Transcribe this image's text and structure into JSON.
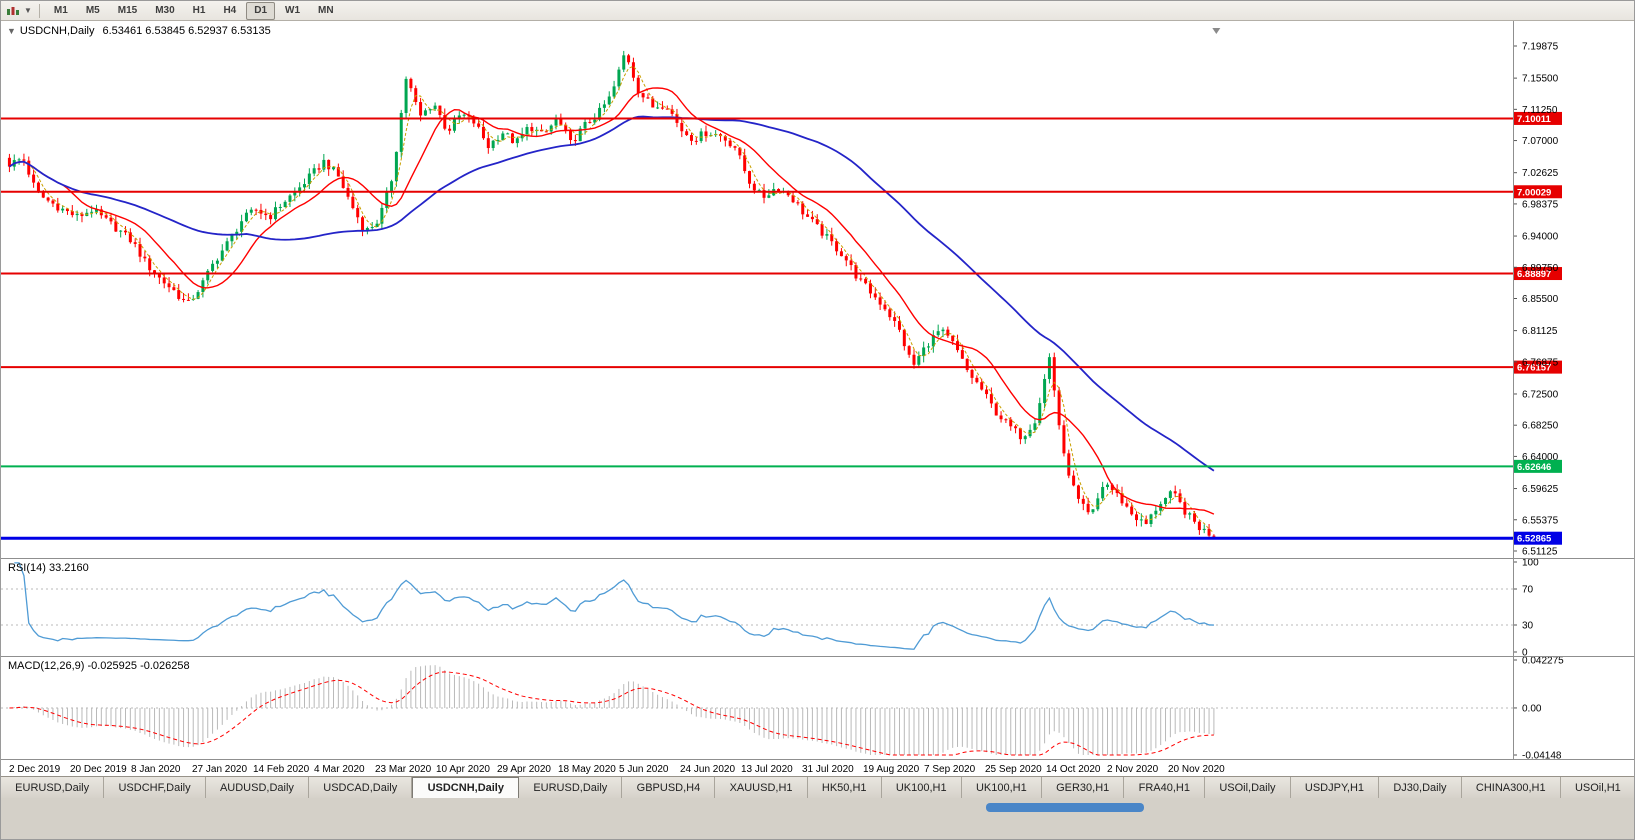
{
  "toolbar": {
    "timeframes": [
      "M1",
      "M5",
      "M15",
      "M30",
      "H1",
      "H4",
      "D1",
      "W1",
      "MN"
    ],
    "active_timeframe": "D1"
  },
  "chart": {
    "collapse_icon": "▼",
    "symbol": "USDCNH,Daily",
    "ohlc": "6.53461 6.53845 6.52937 6.53135"
  },
  "rsi": {
    "label": "RSI(14) 33.2160",
    "value": 33.216,
    "line_color": "#4f9bd5",
    "axis_labels": [
      "100",
      "70",
      "30",
      "0"
    ],
    "axis_values": [
      100,
      70,
      30,
      0
    ],
    "guide_levels": [
      70,
      30
    ]
  },
  "macd": {
    "label": "MACD(12,26,9) -0.025925 -0.026258",
    "macd_value": -0.025925,
    "signal_value": -0.026258,
    "hist_color": "#b9b9b9",
    "signal_color": "#ff0000",
    "axis_labels": [
      "0.042275",
      "0.00",
      "-0.04148"
    ],
    "axis_values": [
      0.042275,
      0,
      -0.04148
    ]
  },
  "chart_data": {
    "type": "candlestick",
    "symbol": "USDCNH",
    "timeframe": "Daily",
    "visible_ohlc": {
      "open": 6.53461,
      "high": 6.53845,
      "low": 6.52937,
      "close": 6.53135
    },
    "ylim": [
      6.5017,
      7.2246
    ],
    "bar_count": 250,
    "colors": {
      "up": "#00a651",
      "down": "#ff0000",
      "ma_fast": "#ff0000",
      "ma_slow": "#2424c8",
      "ma_dotted": "#c8a000"
    },
    "y_tick_values": [
      7.19875,
      7.155,
      7.1125,
      7.07,
      7.02625,
      6.98375,
      6.94,
      6.8975,
      6.855,
      6.81125,
      6.76875,
      6.725,
      6.6825,
      6.64,
      6.59625,
      6.55375,
      6.51125
    ],
    "x_tick_labels": [
      "2 Dec 2019",
      "20 Dec 2019",
      "8 Jan 2020",
      "27 Jan 2020",
      "14 Feb 2020",
      "4 Mar 2020",
      "23 Mar 2020",
      "10 Apr 2020",
      "29 Apr 2020",
      "18 May 2020",
      "5 Jun 2020",
      "24 Jun 2020",
      "13 Jul 2020",
      "31 Jul 2020",
      "19 Aug 2020",
      "7 Sep 2020",
      "25 Sep 2020",
      "14 Oct 2020",
      "2 Nov 2020",
      "20 Nov 2020"
    ],
    "hlines": [
      {
        "value": 7.10011,
        "label": "7.10011",
        "color": "#e60000",
        "width": 2
      },
      {
        "value": 7.00029,
        "label": "7.00029",
        "color": "#e60000",
        "width": 2
      },
      {
        "value": 6.88897,
        "label": "6.88897",
        "color": "#e60000",
        "width": 2
      },
      {
        "value": 6.76157,
        "label": "6.76157",
        "color": "#e60000",
        "width": 2
      },
      {
        "value": 6.62646,
        "label": "6.62646",
        "color": "#00b050",
        "width": 2
      },
      {
        "value": 6.52865,
        "label": "6.52865",
        "color": "#0000e6",
        "width": 3
      }
    ],
    "close_path": [
      7.038,
      7.046,
      6.998,
      6.986,
      6.975,
      6.966,
      6.976,
      6.962,
      6.948,
      6.932,
      6.902,
      6.882,
      6.866,
      6.846,
      6.872,
      6.906,
      6.932,
      6.962,
      6.976,
      6.966,
      6.986,
      7.002,
      7.022,
      7.042,
      7.022,
      6.982,
      6.946,
      6.962,
      7.022,
      7.158,
      7.102,
      7.122,
      7.082,
      7.106,
      7.094,
      7.062,
      7.082,
      7.066,
      7.09,
      7.076,
      7.1,
      7.066,
      7.09,
      7.106,
      7.132,
      7.192,
      7.136,
      7.116,
      7.12,
      7.086,
      7.072,
      7.082,
      7.076,
      7.062,
      7.016,
      6.992,
      7.006,
      6.996,
      6.972,
      6.952,
      6.932,
      6.912,
      6.882,
      6.862,
      6.842,
      6.812,
      6.762,
      6.792,
      6.812,
      6.792,
      6.756,
      6.732,
      6.702,
      6.682,
      6.666,
      6.692,
      6.776,
      6.642,
      6.582,
      6.556,
      6.606,
      6.586,
      6.562,
      6.546,
      6.576,
      6.59,
      6.562,
      6.542,
      6.5314
    ]
  },
  "tabs": {
    "active_index": 4,
    "items": [
      "EURUSD,Daily",
      "USDCHF,Daily",
      "AUDUSD,Daily",
      "USDCAD,Daily",
      "USDCNH,Daily",
      "EURUSD,Daily",
      "GBPUSD,H4",
      "XAUUSD,H1",
      "HK50,H1",
      "UK100,H1",
      "UK100,H1",
      "GER30,H1",
      "FRA40,H1",
      "USOil,Daily",
      "USDJPY,H1",
      "DJ30,Daily",
      "CHINA300,H1",
      "USOil,H1"
    ]
  }
}
